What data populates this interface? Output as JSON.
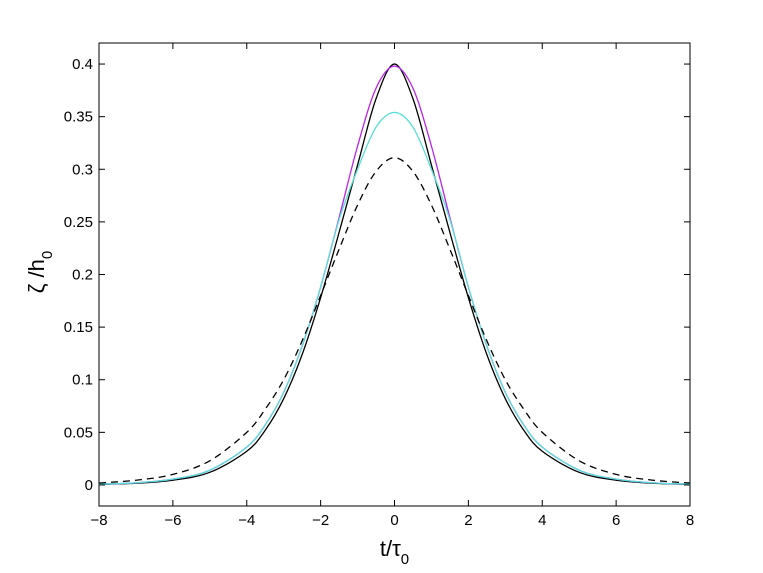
{
  "chart_data": {
    "type": "line",
    "title": "",
    "xlabel": {
      "main": "t/τ",
      "subscript": "0"
    },
    "ylabel": {
      "main": "ζ /h",
      "subscript": "0"
    },
    "xlim": [
      -8,
      8
    ],
    "ylim": [
      -0.02,
      0.42
    ],
    "xticks": [
      "−8",
      "−6",
      "−4",
      "−2",
      "0",
      "2",
      "4",
      "6",
      "8"
    ],
    "yticks": [
      "0",
      "0.05",
      "0.1",
      "0.15",
      "0.2",
      "0.25",
      "0.3",
      "0.35",
      "0.4"
    ],
    "grid": false,
    "legend": "none",
    "x": [
      -8,
      -7,
      -6,
      -5,
      -4,
      -3.5,
      -3,
      -2.5,
      -2,
      -1.5,
      -1,
      -0.5,
      0,
      0.5,
      1,
      1.5,
      2,
      2.5,
      3,
      3.5,
      4,
      5,
      6,
      7,
      8
    ],
    "series": [
      {
        "color": "#000000",
        "dash": "solid",
        "values": [
          0.0006,
          0.0016,
          0.0045,
          0.012,
          0.032,
          0.052,
          0.082,
          0.124,
          0.178,
          0.24,
          0.304,
          0.367,
          0.4,
          0.367,
          0.304,
          0.24,
          0.178,
          0.124,
          0.082,
          0.052,
          0.032,
          0.012,
          0.0045,
          0.0016,
          0.0006
        ]
      },
      {
        "color": "#bb22ee",
        "dash": "solid",
        "values": [
          0.0008,
          0.002,
          0.0055,
          0.014,
          0.036,
          0.057,
          0.088,
          0.132,
          0.188,
          0.254,
          0.322,
          0.377,
          0.398,
          0.377,
          0.322,
          0.254,
          0.188,
          0.132,
          0.088,
          0.057,
          0.036,
          0.014,
          0.0055,
          0.002,
          0.0008
        ]
      },
      {
        "color": "#55e0d8",
        "dash": "solid",
        "values": [
          0.0008,
          0.002,
          0.0055,
          0.014,
          0.036,
          0.057,
          0.088,
          0.132,
          0.188,
          0.252,
          0.3,
          0.34,
          0.354,
          0.34,
          0.3,
          0.252,
          0.188,
          0.132,
          0.088,
          0.057,
          0.036,
          0.014,
          0.0055,
          0.002,
          0.0008
        ]
      },
      {
        "color": "#000000",
        "dash": "dashed",
        "values": [
          0.0018,
          0.0045,
          0.01,
          0.023,
          0.05,
          0.072,
          0.1,
          0.137,
          0.18,
          0.224,
          0.266,
          0.298,
          0.311,
          0.298,
          0.266,
          0.224,
          0.18,
          0.137,
          0.1,
          0.072,
          0.05,
          0.023,
          0.01,
          0.0045,
          0.0018
        ]
      }
    ]
  }
}
